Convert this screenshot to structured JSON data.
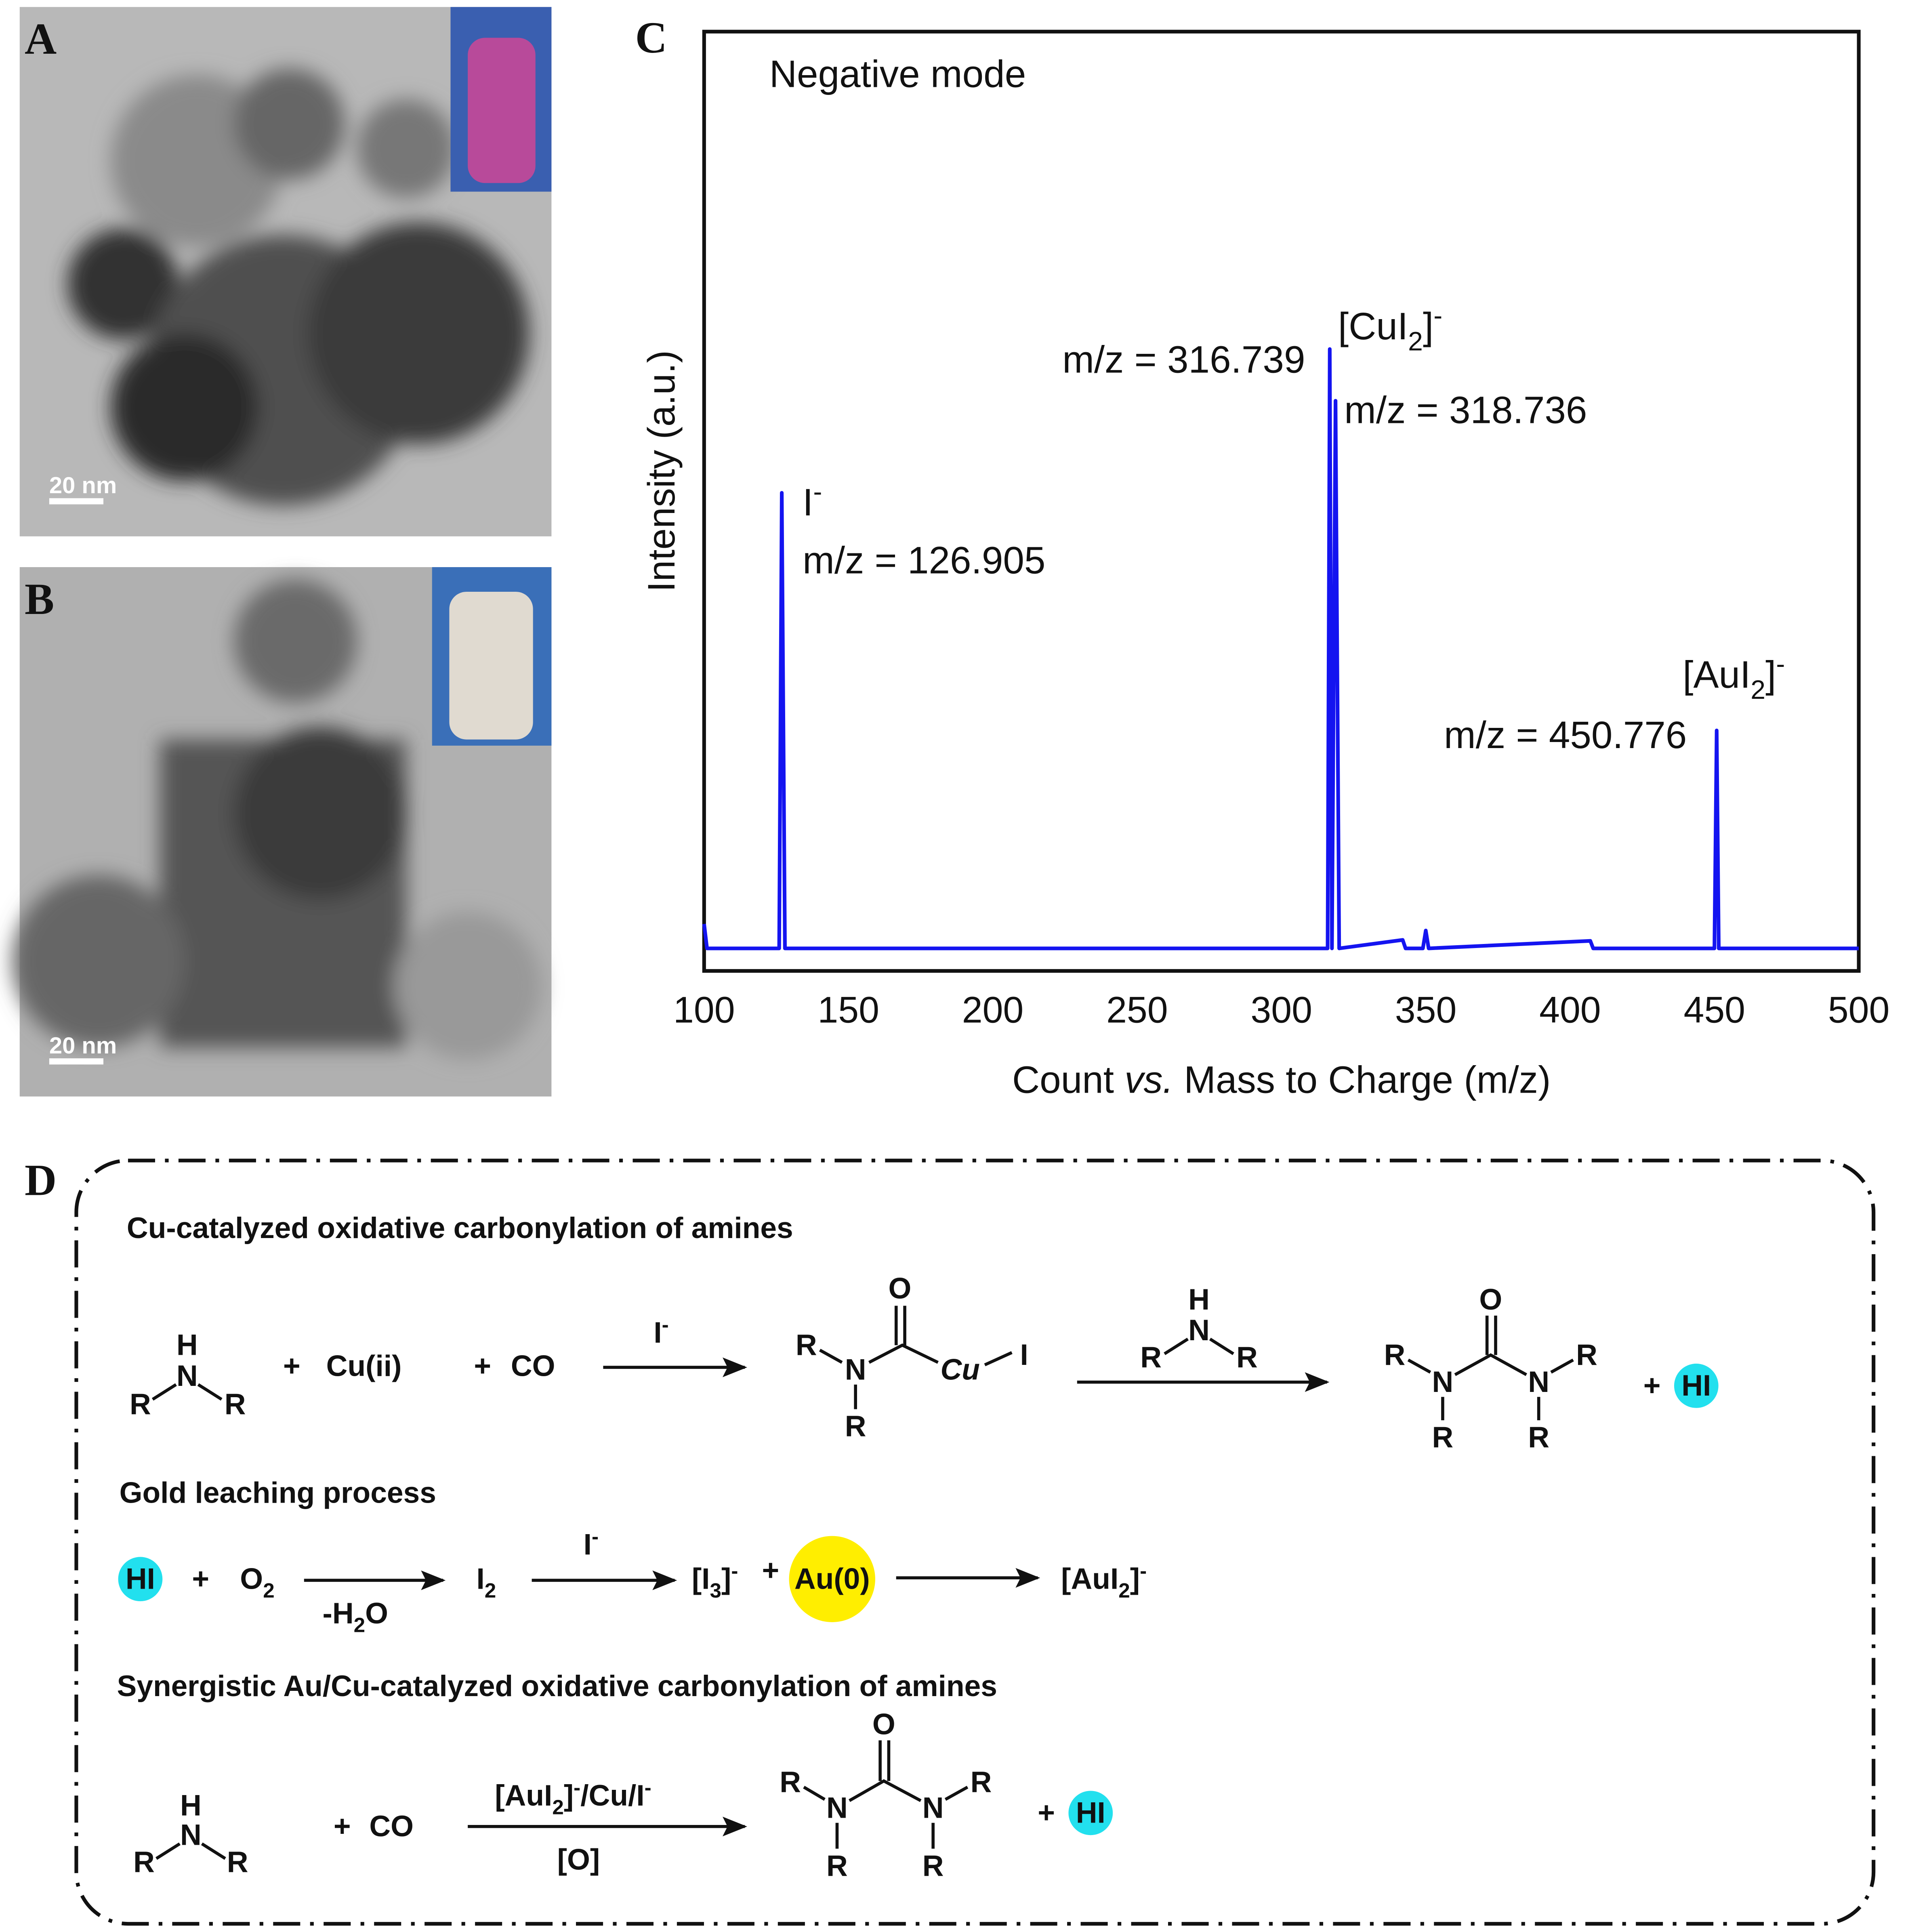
{
  "panels": {
    "a": "A",
    "b": "B",
    "c": "C",
    "d": "D"
  },
  "scale_bars": [
    "20 nm",
    "20 nm"
  ],
  "chart_data": {
    "type": "line",
    "x_label": [
      "Count ",
      "vs.",
      " Mass to Charge (m/z)"
    ],
    "y_label": "Intensity (a.u.)",
    "xlim": [
      100,
      500
    ],
    "xticks": [
      100,
      150,
      200,
      250,
      300,
      350,
      400,
      450,
      500
    ],
    "ylim": [
      0,
      100
    ],
    "grid": false,
    "series": [
      {
        "color": "#1414f0",
        "x": [
          100,
          101,
          126,
          126.905,
          128,
          316,
          316.739,
          317.5,
          318.736,
          320,
          342,
          343,
          349,
          350,
          351,
          407,
          408,
          450,
          450.776,
          451.5,
          500
        ],
        "values": [
          5,
          2.4,
          2.4,
          50.9,
          2.4,
          2.4,
          66.2,
          2.4,
          60.7,
          2.4,
          3.3,
          2.4,
          2.4,
          4.3,
          2.4,
          3.2,
          2.4,
          2.4,
          25.6,
          2.4,
          2.4
        ]
      }
    ],
    "annotations": [
      "Negative mode",
      "m/z = 126.905",
      "m/z = 316.739",
      "m/z = 318.736",
      "m/z = 450.776"
    ],
    "ions": [
      [
        "I",
        "-"
      ],
      [
        "[CuI",
        "2",
        "]",
        "-"
      ],
      [
        "[AuI",
        "2",
        "]",
        "-"
      ]
    ]
  },
  "scheme": {
    "titles": [
      "Cu-catalyzed oxidative carbonylation of amines",
      "Gold leaching process",
      "Synergistic Au/Cu-catalyzed oxidative carbonylation of amines"
    ],
    "amine": [
      "H",
      "N",
      "R",
      "R"
    ],
    "acyl": [
      "O",
      "R",
      "N",
      "R",
      "Cu",
      "I"
    ],
    "urea": [
      "O",
      "R",
      "N",
      "R",
      "N",
      "R",
      "R"
    ],
    "plus": "+",
    "cu2": "Cu(ii)",
    "co": "CO",
    "iodide": [
      "I",
      "-"
    ],
    "hi": "HI",
    "o2": [
      "O",
      "2"
    ],
    "h2o": [
      "-H",
      "2",
      "O"
    ],
    "i2": [
      "I",
      "2"
    ],
    "i3": [
      "[I",
      "3",
      "]",
      "-"
    ],
    "au0": "Au(0)",
    "aui2": [
      "[AuI",
      "2",
      "]",
      "-"
    ],
    "catalyst": [
      "[AuI",
      "2",
      "]",
      "-",
      "/Cu/I",
      "-"
    ],
    "oxidant": "[O]"
  }
}
